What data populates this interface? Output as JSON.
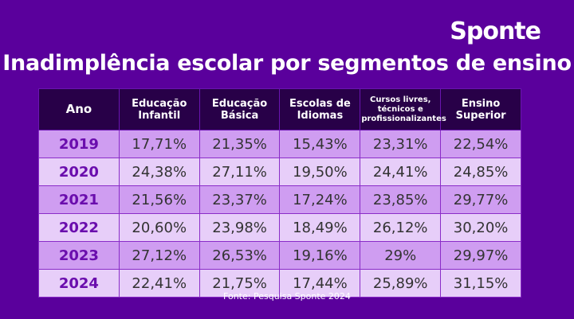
{
  "brand": "Sponte",
  "title": "Inadimplência escolar por segmentos de ensino",
  "table": {
    "headers": [
      "Ano",
      "Educação Infantil",
      "Educação Básica",
      "Escolas de Idiomas",
      "Cursos livres, técnicos e profissionalizantes",
      "Ensino Superior"
    ],
    "rows": [
      [
        "2019",
        "17,71%",
        "21,35%",
        "15,43%",
        "23,31%",
        "22,54%"
      ],
      [
        "2020",
        "24,38%",
        "27,11%",
        "19,50%",
        "24,41%",
        "24,85%"
      ],
      [
        "2021",
        "21,56%",
        "23,37%",
        "17,24%",
        "23,85%",
        "29,77%"
      ],
      [
        "2022",
        "20,60%",
        "23,98%",
        "18,49%",
        "26,12%",
        "30,20%"
      ],
      [
        "2023",
        "27,12%",
        "26,53%",
        "19,16%",
        "29%",
        "29,97%"
      ],
      [
        "2024",
        "22,41%",
        "21,75%",
        "17,44%",
        "25,89%",
        "31,15%"
      ]
    ]
  },
  "source": "Fonte: Pesquisa Sponte 2024",
  "colors": {
    "background": "#5a009c",
    "header": "#280048",
    "row_odd": "#cf9df1",
    "row_even": "#e7cef9",
    "year": "#6a0dad"
  }
}
